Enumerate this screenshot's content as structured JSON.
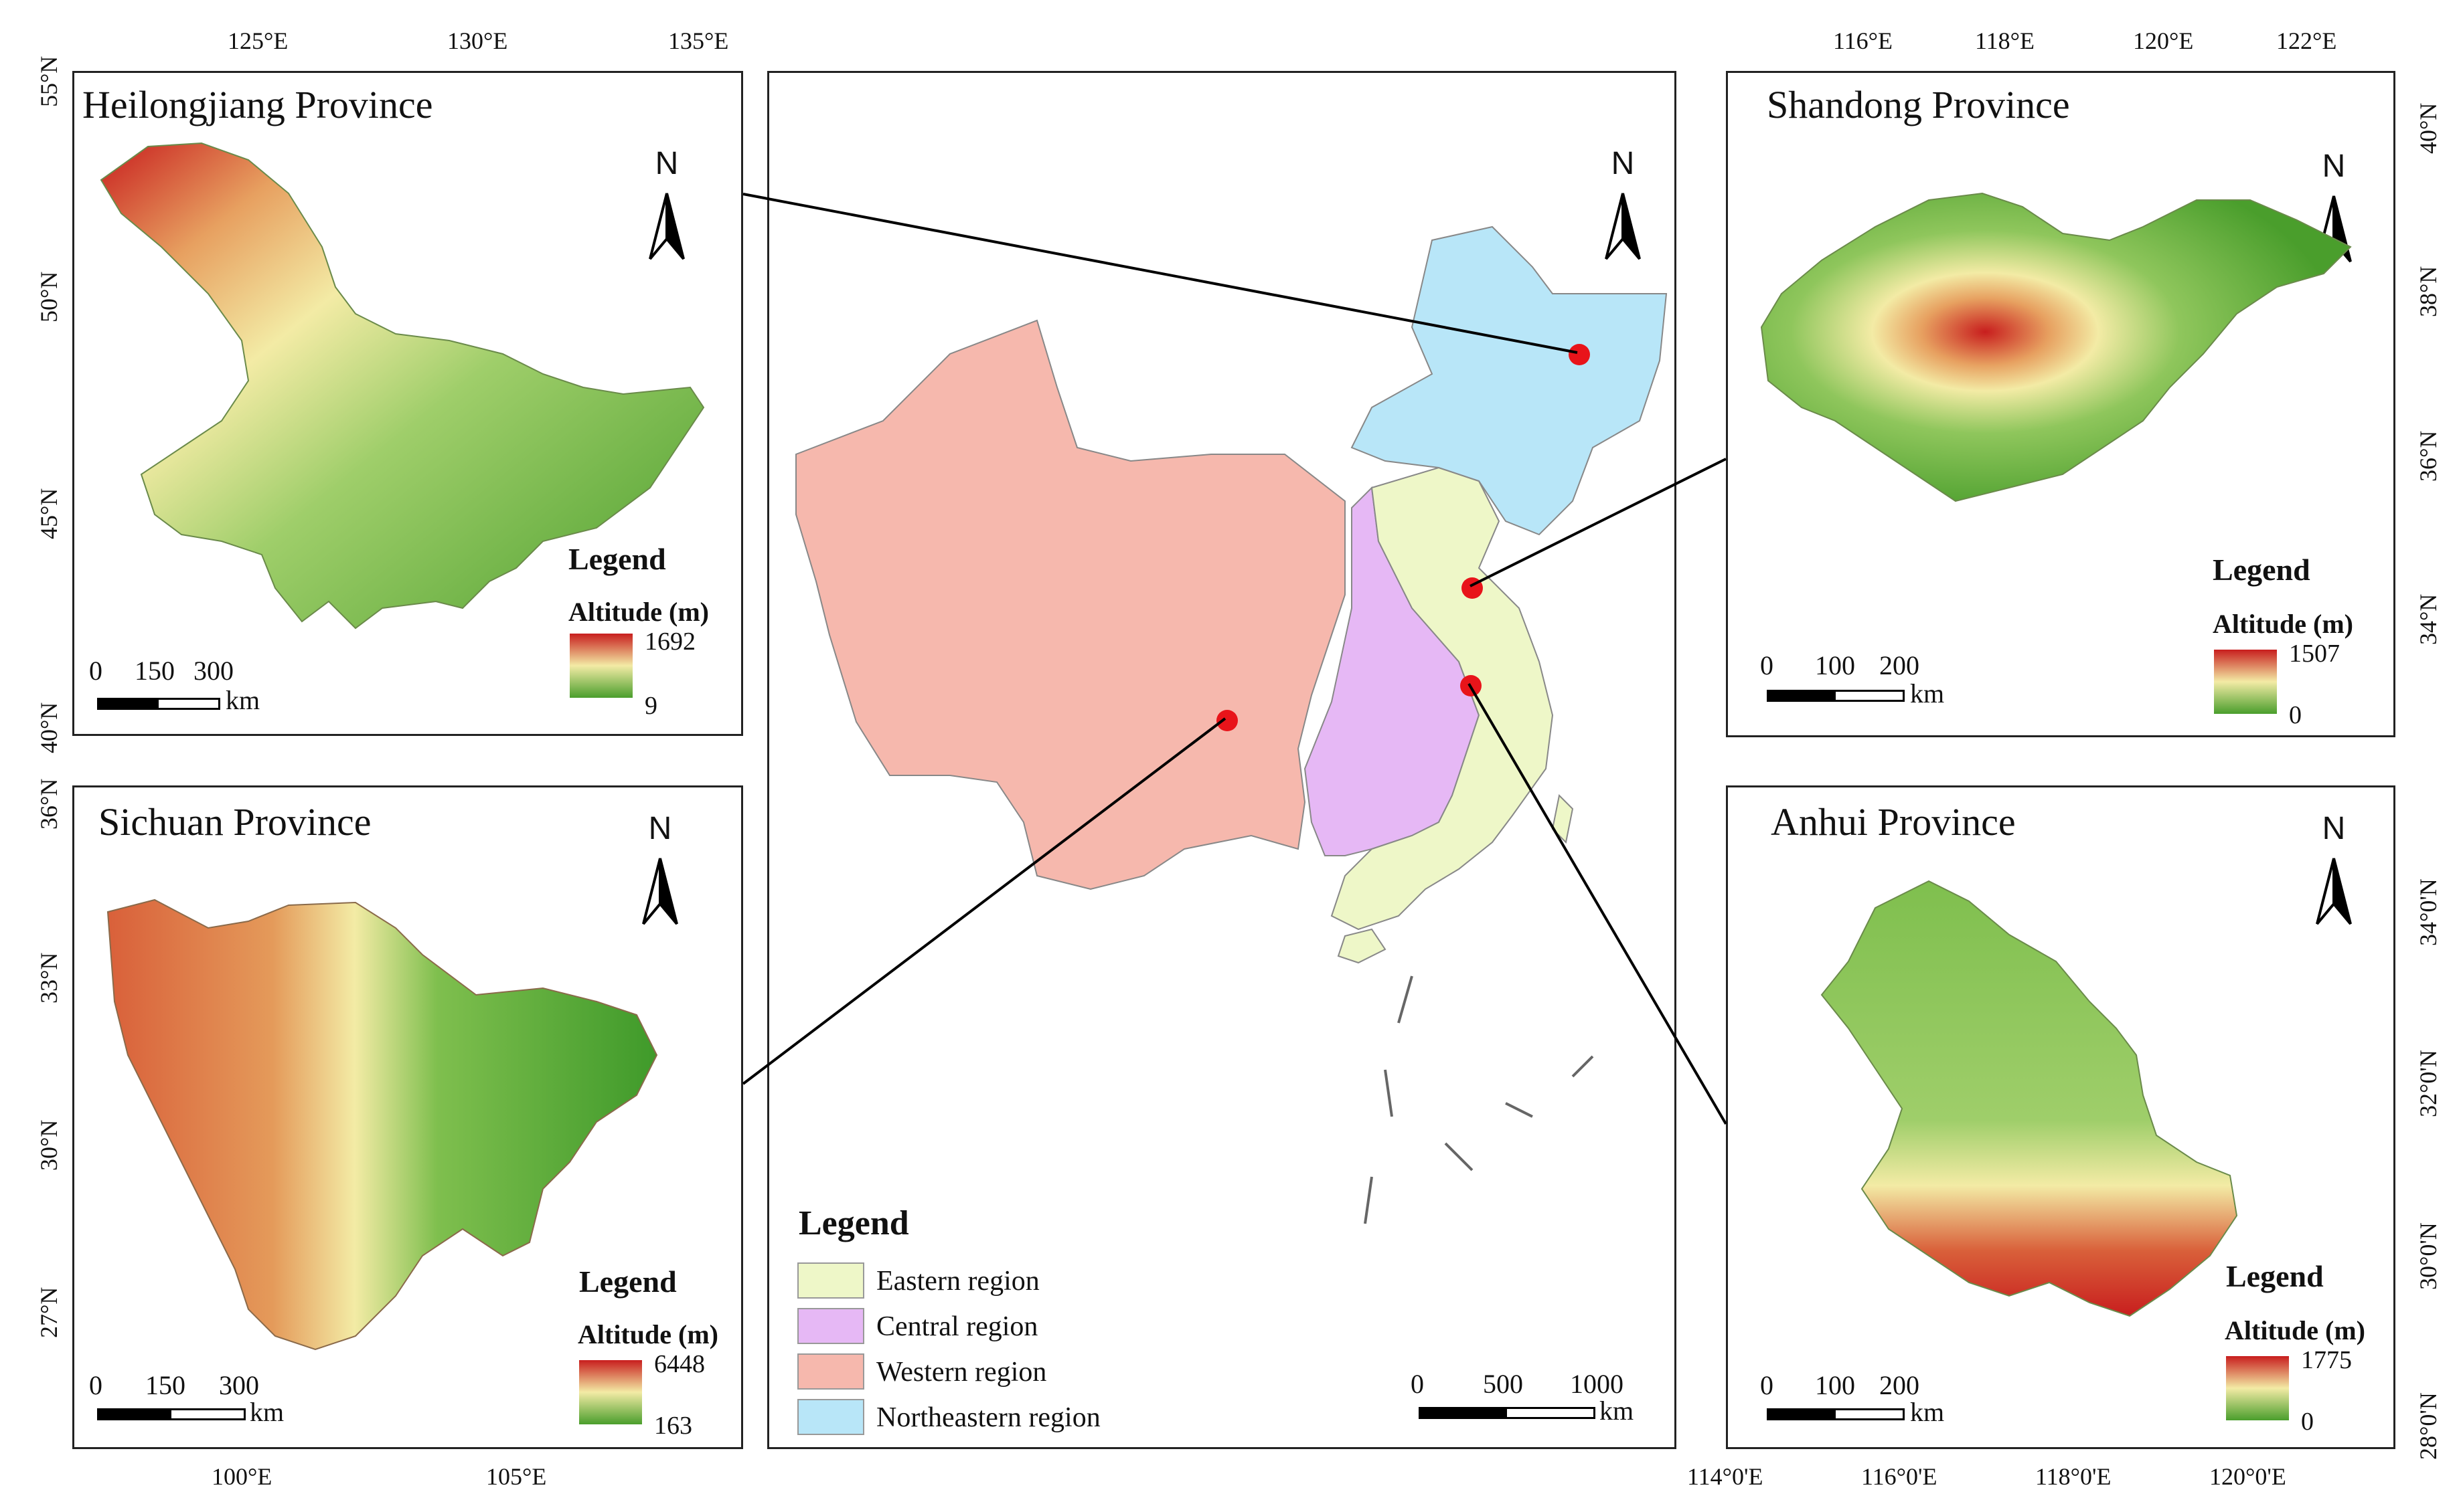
{
  "panels": {
    "heilongjiang": {
      "title": "Heilongjiang Province",
      "top_ticks": [
        "125°E",
        "130°E",
        "135°E"
      ],
      "left_ticks": [
        "55°N",
        "50°N",
        "45°N",
        "40°N"
      ],
      "legend_title": "Legend",
      "altitude_label": "Altitude (m)",
      "alt_max": "1692",
      "alt_min": "9",
      "scale_labels": [
        "0",
        "150",
        "300"
      ],
      "scale_unit": "km"
    },
    "sichuan": {
      "title": "Sichuan Province",
      "bottom_ticks": [
        "100°E",
        "105°E"
      ],
      "left_ticks": [
        "36°N",
        "33°N",
        "30°N",
        "27°N"
      ],
      "legend_title": "Legend",
      "altitude_label": "Altitude (m)",
      "alt_max": "6448",
      "alt_min": "163",
      "scale_labels": [
        "0",
        "150",
        "300"
      ],
      "scale_unit": "km"
    },
    "shandong": {
      "title": "Shandong Province",
      "top_ticks": [
        "116°E",
        "118°E",
        "120°E",
        "122°E"
      ],
      "right_ticks": [
        "40°N",
        "38°N",
        "36°N",
        "34°N"
      ],
      "legend_title": "Legend",
      "altitude_label": "Altitude (m)",
      "alt_max": "1507",
      "alt_min": "0",
      "scale_labels": [
        "0",
        "100",
        "200"
      ],
      "scale_unit": "km"
    },
    "anhui": {
      "title": "Anhui Province",
      "bottom_ticks": [
        "114°0'E",
        "116°0'E",
        "118°0'E",
        "120°0'E"
      ],
      "right_ticks": [
        "34°0'N",
        "32°0'N",
        "30°0'N",
        "28°0'N"
      ],
      "legend_title": "Legend",
      "altitude_label": "Altitude (m)",
      "alt_max": "1775",
      "alt_min": "0",
      "scale_labels": [
        "0",
        "100",
        "200"
      ],
      "scale_unit": "km"
    },
    "china": {
      "legend_title": "Legend",
      "regions": [
        {
          "label": "Eastern region",
          "color": "#eef7c8"
        },
        {
          "label": "Central region",
          "color": "#e6b8f5"
        },
        {
          "label": "Western region",
          "color": "#f6b8ad"
        },
        {
          "label": "Northeastern region",
          "color": "#b8e6f8"
        }
      ],
      "scale_labels": [
        "0",
        "500",
        "1000"
      ],
      "scale_unit": "km"
    }
  },
  "north_label": "N",
  "colors": {
    "dem_low": "#4a9e2c",
    "dem_mid": "#f3eba5",
    "dem_high": "#c81e1e",
    "marker": "#e8141a",
    "frame": "#222222"
  }
}
